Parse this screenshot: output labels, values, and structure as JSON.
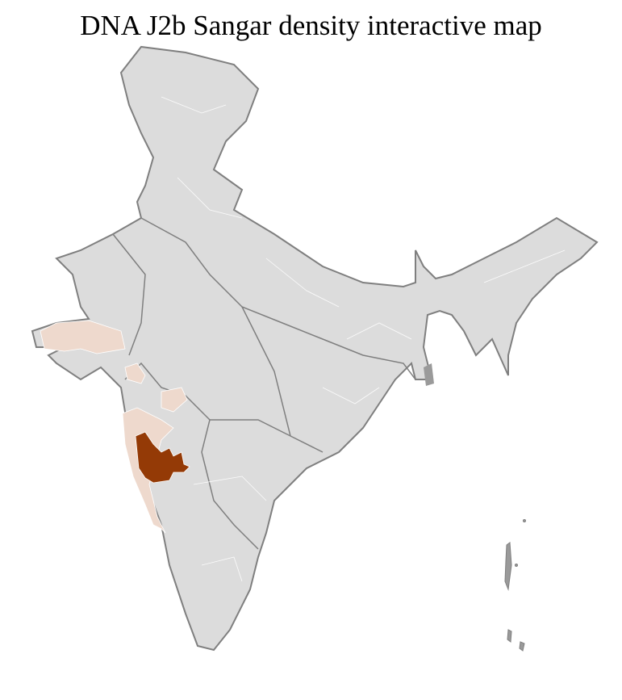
{
  "title": "DNA J2b Sangar density interactive map",
  "colors": {
    "no_data": "#dcdcdc",
    "border": "#7f7f7f",
    "low_density": "#eed9cd",
    "high_density": "#943a06",
    "district_lines": "#ffffff"
  },
  "highlighted_regions": [
    {
      "region": "Kutch / north Gujarat",
      "level": "low"
    },
    {
      "region": "Konkan coast",
      "level": "low"
    },
    {
      "region": "Pune / Satara / Solapur area",
      "level": "high"
    }
  ]
}
